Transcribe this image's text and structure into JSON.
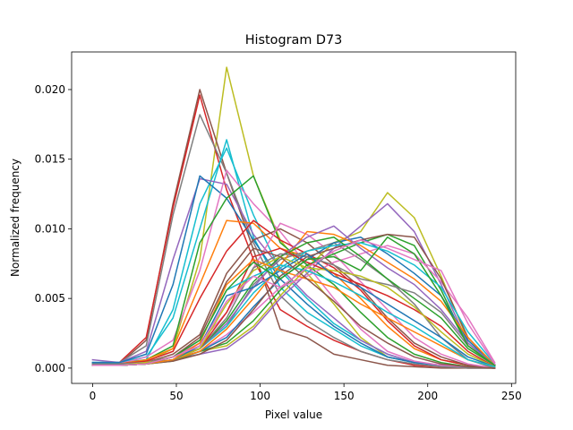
{
  "chart_data": {
    "type": "line",
    "title": "Histogram D73",
    "xlabel": "Pixel value",
    "ylabel": "Normalized frequency",
    "xlim": [
      -12.5,
      252.5
    ],
    "ylim": [
      -0.0011,
      0.0227
    ],
    "xticks": [
      0,
      50,
      100,
      150,
      200,
      250
    ],
    "xtick_labels": [
      "0",
      "50",
      "100",
      "150",
      "200",
      "250"
    ],
    "yticks": [
      0.0,
      0.005,
      0.01,
      0.015,
      0.02
    ],
    "ytick_labels": [
      "0.000",
      "0.005",
      "0.010",
      "0.015",
      "0.020"
    ],
    "grid": false,
    "x": [
      0,
      16,
      32,
      48,
      64,
      80,
      96,
      112,
      128,
      144,
      160,
      176,
      192,
      208,
      224,
      240
    ],
    "series": [
      {
        "color": "#bcbd22",
        "values": [
          0.0002,
          0.0002,
          0.0004,
          0.0014,
          0.0078,
          0.0216,
          0.0138,
          0.0092,
          0.0068,
          0.0046,
          0.0022,
          0.0008,
          0.0004,
          0.0002,
          0.0001,
          0.0
        ]
      },
      {
        "color": "#8c564b",
        "values": [
          0.0003,
          0.0003,
          0.002,
          0.0118,
          0.02,
          0.014,
          0.0085,
          0.0028,
          0.0022,
          0.001,
          0.0006,
          0.0002,
          0.0001,
          0.0,
          0.0,
          0.0
        ]
      },
      {
        "color": "#d62728",
        "values": [
          0.0002,
          0.0004,
          0.0022,
          0.0115,
          0.0196,
          0.0128,
          0.0078,
          0.0042,
          0.003,
          0.002,
          0.0012,
          0.0006,
          0.0002,
          0.0001,
          0.0,
          0.0
        ]
      },
      {
        "color": "#7f7f7f",
        "values": [
          0.0002,
          0.0004,
          0.0016,
          0.011,
          0.0182,
          0.014,
          0.009,
          0.0052,
          0.0034,
          0.0022,
          0.0012,
          0.0006,
          0.0003,
          0.0001,
          0.0,
          0.0
        ]
      },
      {
        "color": "#17becf",
        "values": [
          0.0004,
          0.0004,
          0.0008,
          0.0036,
          0.01,
          0.0164,
          0.0094,
          0.0058,
          0.004,
          0.0028,
          0.0016,
          0.0008,
          0.0004,
          0.0002,
          0.0001,
          0.0
        ]
      },
      {
        "color": "#17becf",
        "values": [
          0.0004,
          0.0004,
          0.0006,
          0.0042,
          0.0118,
          0.0158,
          0.011,
          0.007,
          0.005,
          0.0032,
          0.002,
          0.001,
          0.0004,
          0.0002,
          0.0001,
          0.0
        ]
      },
      {
        "color": "#9467bd",
        "values": [
          0.0006,
          0.0004,
          0.0012,
          0.0078,
          0.0136,
          0.0132,
          0.0096,
          0.0072,
          0.0052,
          0.0036,
          0.002,
          0.001,
          0.0004,
          0.0002,
          0.0001,
          0.0
        ]
      },
      {
        "color": "#1f77b4",
        "values": [
          0.0004,
          0.0004,
          0.001,
          0.006,
          0.0138,
          0.0122,
          0.0092,
          0.0064,
          0.0046,
          0.003,
          0.0018,
          0.0008,
          0.0004,
          0.0002,
          0.0001,
          0.0
        ]
      },
      {
        "color": "#e377c2",
        "values": [
          0.0003,
          0.0003,
          0.0008,
          0.002,
          0.007,
          0.0142,
          0.0118,
          0.0098,
          0.0074,
          0.005,
          0.0028,
          0.0012,
          0.0005,
          0.0002,
          0.0001,
          0.0
        ]
      },
      {
        "color": "#2ca02c",
        "values": [
          0.0003,
          0.0003,
          0.0006,
          0.0016,
          0.009,
          0.0122,
          0.0138,
          0.009,
          0.0074,
          0.006,
          0.004,
          0.0022,
          0.001,
          0.0004,
          0.0001,
          0.0
        ]
      },
      {
        "color": "#ff7f0e",
        "values": [
          0.0003,
          0.0003,
          0.0006,
          0.0014,
          0.006,
          0.0106,
          0.0104,
          0.0086,
          0.008,
          0.0068,
          0.005,
          0.003,
          0.0014,
          0.0006,
          0.0002,
          0.0
        ]
      },
      {
        "color": "#d62728",
        "values": [
          0.0003,
          0.0003,
          0.0005,
          0.0012,
          0.005,
          0.0084,
          0.0106,
          0.0092,
          0.0082,
          0.0072,
          0.0056,
          0.0034,
          0.0016,
          0.0006,
          0.0002,
          0.0
        ]
      },
      {
        "color": "#8c564b",
        "values": [
          0.0003,
          0.0003,
          0.0004,
          0.001,
          0.0024,
          0.0068,
          0.0092,
          0.01,
          0.009,
          0.0074,
          0.0058,
          0.0036,
          0.0018,
          0.0008,
          0.0002,
          0.0
        ]
      },
      {
        "color": "#e377c2",
        "values": [
          0.0003,
          0.0003,
          0.0004,
          0.0008,
          0.0018,
          0.004,
          0.0072,
          0.0104,
          0.0096,
          0.0082,
          0.0062,
          0.0042,
          0.0022,
          0.001,
          0.0003,
          0.0
        ]
      },
      {
        "color": "#7f7f7f",
        "values": [
          0.0003,
          0.0003,
          0.0004,
          0.0008,
          0.0014,
          0.003,
          0.006,
          0.0078,
          0.0084,
          0.009,
          0.0078,
          0.0064,
          0.0046,
          0.0022,
          0.0006,
          0.0
        ]
      },
      {
        "color": "#bcbd22",
        "values": [
          0.0002,
          0.0002,
          0.0004,
          0.0006,
          0.0012,
          0.0016,
          0.003,
          0.0052,
          0.0072,
          0.009,
          0.0098,
          0.0126,
          0.0108,
          0.0066,
          0.002,
          0.0002
        ]
      },
      {
        "color": "#9467bd",
        "values": [
          0.0002,
          0.0002,
          0.0003,
          0.0006,
          0.001,
          0.0014,
          0.0028,
          0.005,
          0.0068,
          0.0086,
          0.0102,
          0.0118,
          0.0098,
          0.006,
          0.0018,
          0.0002
        ]
      },
      {
        "color": "#2ca02c",
        "values": [
          0.0002,
          0.0002,
          0.0003,
          0.0005,
          0.0012,
          0.0018,
          0.0034,
          0.0056,
          0.0074,
          0.0082,
          0.009,
          0.0096,
          0.0088,
          0.0056,
          0.0016,
          0.0002
        ]
      },
      {
        "color": "#e377c2",
        "values": [
          0.0002,
          0.0002,
          0.0003,
          0.0006,
          0.0012,
          0.0024,
          0.004,
          0.0058,
          0.0066,
          0.0076,
          0.0082,
          0.0088,
          0.0082,
          0.0062,
          0.0036,
          0.0004
        ]
      },
      {
        "color": "#1f77b4",
        "values": [
          0.0002,
          0.0002,
          0.0003,
          0.0006,
          0.0012,
          0.0022,
          0.0044,
          0.0064,
          0.0078,
          0.009,
          0.0094,
          0.0082,
          0.0068,
          0.0052,
          0.002,
          0.0002
        ]
      },
      {
        "color": "#8c564b",
        "values": [
          0.0002,
          0.0002,
          0.0003,
          0.0005,
          0.001,
          0.002,
          0.0042,
          0.0066,
          0.008,
          0.0086,
          0.0092,
          0.0096,
          0.0094,
          0.0064,
          0.0022,
          0.0002
        ]
      },
      {
        "color": "#17becf",
        "values": [
          0.0002,
          0.0002,
          0.0003,
          0.0006,
          0.0014,
          0.003,
          0.0054,
          0.0072,
          0.0084,
          0.0088,
          0.009,
          0.0084,
          0.0074,
          0.0058,
          0.0026,
          0.0003
        ]
      },
      {
        "color": "#ff7f0e",
        "values": [
          0.0002,
          0.0002,
          0.0003,
          0.0006,
          0.0012,
          0.0028,
          0.005,
          0.0074,
          0.0098,
          0.0096,
          0.0088,
          0.0076,
          0.0064,
          0.0048,
          0.0022,
          0.0002
        ]
      },
      {
        "color": "#9467bd",
        "values": [
          0.0002,
          0.0002,
          0.0003,
          0.0006,
          0.0014,
          0.0032,
          0.0058,
          0.008,
          0.0094,
          0.0102,
          0.0086,
          0.0072,
          0.006,
          0.0042,
          0.0018,
          0.0002
        ]
      },
      {
        "color": "#2ca02c",
        "values": [
          0.0002,
          0.0002,
          0.0003,
          0.0006,
          0.0014,
          0.0034,
          0.0062,
          0.008,
          0.009,
          0.0094,
          0.008,
          0.0064,
          0.005,
          0.0036,
          0.0014,
          0.0002
        ]
      },
      {
        "color": "#7f7f7f",
        "values": [
          0.0002,
          0.0002,
          0.0003,
          0.0006,
          0.0014,
          0.0036,
          0.0072,
          0.0082,
          0.008,
          0.0074,
          0.0064,
          0.006,
          0.0054,
          0.004,
          0.0016,
          0.0002
        ]
      },
      {
        "color": "#d62728",
        "values": [
          0.0002,
          0.0002,
          0.0003,
          0.0006,
          0.0014,
          0.004,
          0.008,
          0.0086,
          0.0076,
          0.0068,
          0.006,
          0.0052,
          0.0042,
          0.003,
          0.0012,
          0.0001
        ]
      },
      {
        "color": "#bcbd22",
        "values": [
          0.0002,
          0.0002,
          0.0003,
          0.0006,
          0.0014,
          0.0046,
          0.007,
          0.008,
          0.0072,
          0.007,
          0.0066,
          0.0058,
          0.0044,
          0.0026,
          0.001,
          0.0001
        ]
      },
      {
        "color": "#1f77b4",
        "values": [
          0.0002,
          0.0002,
          0.0003,
          0.0006,
          0.0016,
          0.0052,
          0.0058,
          0.007,
          0.0082,
          0.0066,
          0.0058,
          0.0046,
          0.0034,
          0.0022,
          0.0008,
          0.0001
        ]
      },
      {
        "color": "#ff7f0e",
        "values": [
          0.0002,
          0.0002,
          0.0003,
          0.0006,
          0.0018,
          0.006,
          0.0078,
          0.007,
          0.0064,
          0.0058,
          0.0046,
          0.0036,
          0.0026,
          0.0016,
          0.0006,
          0.0001
        ]
      },
      {
        "color": "#17becf",
        "values": [
          0.0002,
          0.0002,
          0.0003,
          0.0008,
          0.002,
          0.0056,
          0.0066,
          0.0074,
          0.007,
          0.0062,
          0.0052,
          0.004,
          0.003,
          0.0018,
          0.0006,
          0.0001
        ]
      },
      {
        "color": "#8c564b",
        "values": [
          0.0002,
          0.0002,
          0.0003,
          0.0008,
          0.0022,
          0.0062,
          0.0086,
          0.008,
          0.0064,
          0.0048,
          0.003,
          0.0018,
          0.0008,
          0.0003,
          0.0001,
          0.0
        ]
      },
      {
        "color": "#2ca02c",
        "values": [
          0.0002,
          0.0002,
          0.0003,
          0.0008,
          0.002,
          0.0056,
          0.0076,
          0.0064,
          0.0078,
          0.008,
          0.007,
          0.0094,
          0.0082,
          0.0052,
          0.0016,
          0.0002
        ]
      },
      {
        "color": "#e377c2",
        "values": [
          0.0002,
          0.0002,
          0.0003,
          0.0008,
          0.0016,
          0.0048,
          0.0066,
          0.0058,
          0.0072,
          0.0084,
          0.0092,
          0.0086,
          0.0078,
          0.007,
          0.0032,
          0.0003
        ]
      }
    ]
  }
}
